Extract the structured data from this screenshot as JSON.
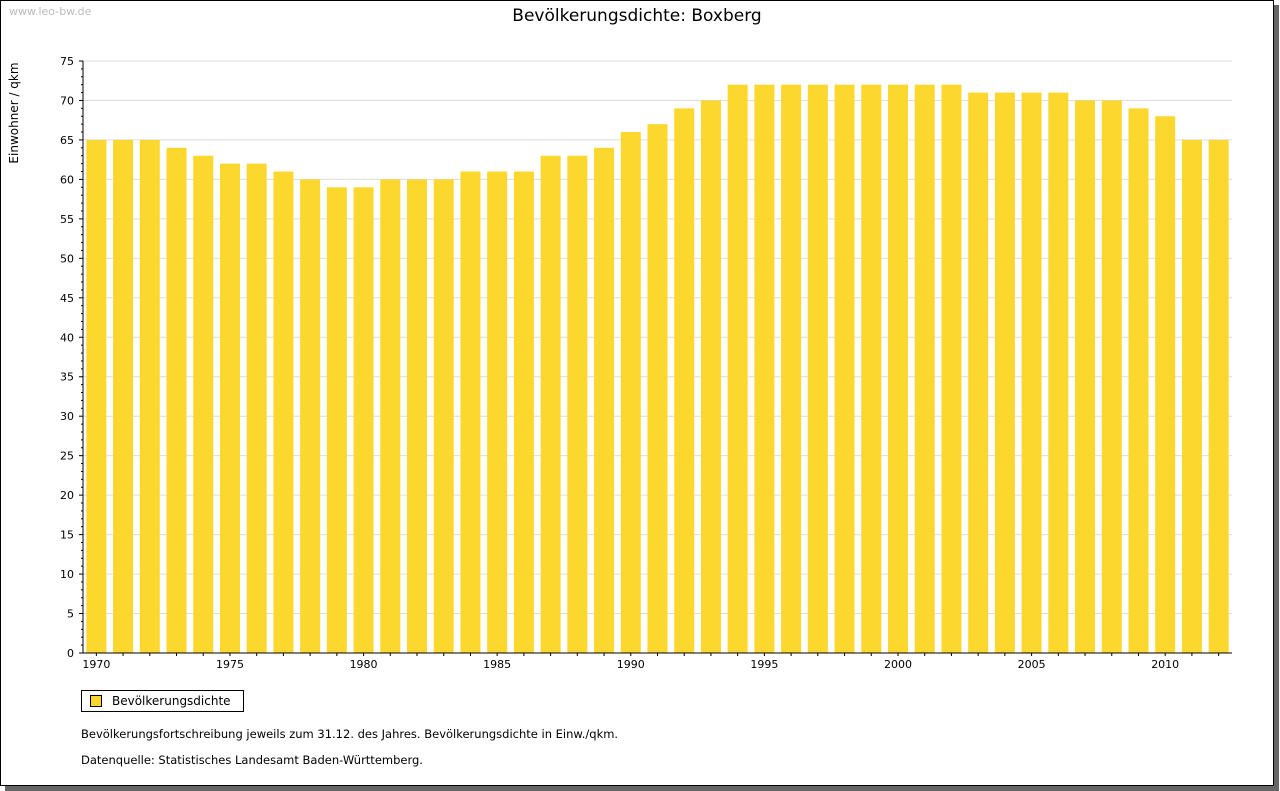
{
  "watermark": "www.leo-bw.de",
  "chart_data": {
    "type": "bar",
    "title": "Bevölkerungsdichte: Boxberg",
    "ylabel": "Einwohner / qkm",
    "xlabel": "",
    "ylim": [
      0,
      75
    ],
    "yticks": [
      0,
      5,
      10,
      15,
      20,
      25,
      30,
      35,
      40,
      45,
      50,
      55,
      60,
      65,
      70,
      75
    ],
    "xticks": [
      1970,
      1975,
      1980,
      1985,
      1990,
      1995,
      2000,
      2005,
      2010
    ],
    "categories": [
      1970,
      1971,
      1972,
      1973,
      1974,
      1975,
      1976,
      1977,
      1978,
      1979,
      1980,
      1981,
      1982,
      1983,
      1984,
      1985,
      1986,
      1987,
      1988,
      1989,
      1990,
      1991,
      1992,
      1993,
      1994,
      1995,
      1996,
      1997,
      1998,
      1999,
      2000,
      2001,
      2002,
      2003,
      2004,
      2005,
      2006,
      2007,
      2008,
      2009,
      2010,
      2011,
      2012
    ],
    "values": [
      65,
      65,
      65,
      64,
      63,
      62,
      62,
      61,
      60,
      59,
      59,
      60,
      60,
      60,
      61,
      61,
      61,
      63,
      63,
      64,
      66,
      67,
      69,
      70,
      72,
      72,
      72,
      72,
      72,
      72,
      72,
      72,
      72,
      71,
      71,
      71,
      71,
      70,
      70,
      69,
      68,
      65,
      65
    ],
    "series_name": "Bevölkerungsdichte",
    "color": "#fcd72e",
    "grid": true,
    "legend": "bottom-left"
  },
  "notes": [
    "Bevölkerungsfortschreibung jeweils zum 31.12. des Jahres. Bevölkerungsdichte in Einw./qkm.",
    "Datenquelle: Statistisches Landesamt Baden-Württemberg."
  ]
}
